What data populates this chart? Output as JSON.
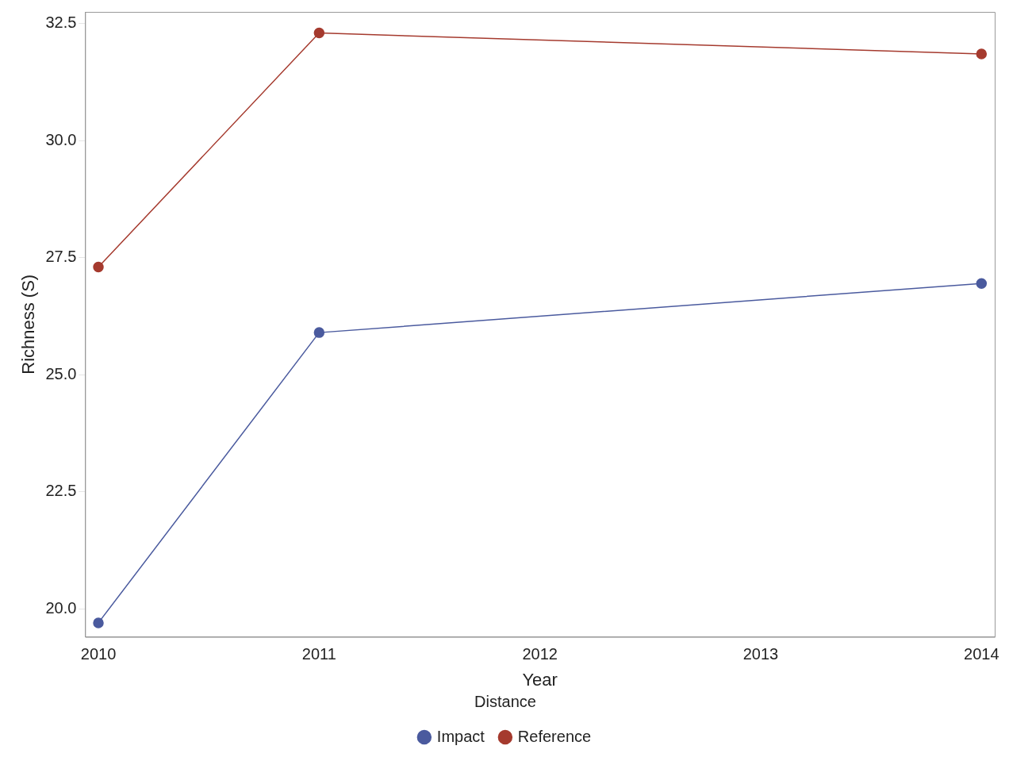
{
  "chart_data": {
    "type": "line",
    "xlabel": "Year",
    "ylabel": "Richness (S)",
    "legend_title": "Distance",
    "x": [
      2010,
      2011,
      2014
    ],
    "series": [
      {
        "name": "Impact",
        "color": "#4a5a9e",
        "values": [
          19.7,
          25.9,
          26.95
        ]
      },
      {
        "name": "Reference",
        "color": "#a53a2e",
        "values": [
          27.3,
          32.3,
          31.85
        ]
      }
    ],
    "xlim": [
      2009.94,
      2014.06
    ],
    "xticks": [
      2010,
      2011,
      2012,
      2013,
      2014
    ],
    "ylim": [
      19.4,
      32.75
    ],
    "yticks": [
      {
        "value": 20,
        "label": "20.0"
      },
      {
        "value": 22.5,
        "label": "22.5"
      },
      {
        "value": 25,
        "label": "25.0"
      },
      {
        "value": 27.5,
        "label": "27.5"
      },
      {
        "value": 30,
        "label": "30.0"
      },
      {
        "value": 32.5,
        "label": "32.5"
      }
    ],
    "grid": false,
    "legend": "bottom",
    "marker": "circle",
    "line_style": "solid"
  }
}
